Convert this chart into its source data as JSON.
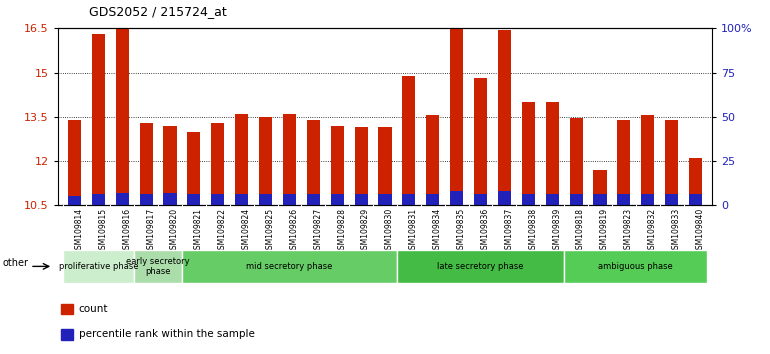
{
  "title": "GDS2052 / 215724_at",
  "samples": [
    "GSM109814",
    "GSM109815",
    "GSM109816",
    "GSM109817",
    "GSM109820",
    "GSM109821",
    "GSM109822",
    "GSM109824",
    "GSM109825",
    "GSM109826",
    "GSM109827",
    "GSM109828",
    "GSM109829",
    "GSM109830",
    "GSM109831",
    "GSM109834",
    "GSM109835",
    "GSM109836",
    "GSM109837",
    "GSM109838",
    "GSM109839",
    "GSM109818",
    "GSM109819",
    "GSM109823",
    "GSM109832",
    "GSM109833",
    "GSM109840"
  ],
  "count_values": [
    13.4,
    16.3,
    16.5,
    13.3,
    13.2,
    13.0,
    13.3,
    13.6,
    13.5,
    13.6,
    13.4,
    13.2,
    13.15,
    13.15,
    14.9,
    13.55,
    16.5,
    14.8,
    16.45,
    14.0,
    14.0,
    13.45,
    11.7,
    13.4,
    13.55,
    13.4,
    12.1
  ],
  "percentile_values": [
    0.3,
    0.4,
    0.42,
    0.38,
    0.42,
    0.38,
    0.38,
    0.38,
    0.38,
    0.38,
    0.38,
    0.38,
    0.38,
    0.38,
    0.38,
    0.38,
    0.48,
    0.4,
    0.48,
    0.4,
    0.4,
    0.4,
    0.38,
    0.4,
    0.38,
    0.38,
    0.38
  ],
  "bar_bottom": 10.5,
  "ylim_left": [
    10.5,
    16.5
  ],
  "ylim_right": [
    0,
    100
  ],
  "yticks_left": [
    10.5,
    12.0,
    13.5,
    15.0,
    16.5
  ],
  "yticks_right": [
    0,
    25,
    50,
    75,
    100
  ],
  "ytick_labels_right": [
    "0",
    "25",
    "50",
    "75",
    "100%"
  ],
  "ytick_labels_left": [
    "10.5",
    "12",
    "13.5",
    "15",
    "16.5"
  ],
  "count_color": "#CC2200",
  "percentile_color": "#2222BB",
  "bar_width": 0.55,
  "phases": [
    {
      "label": "proliferative phase",
      "start": 0,
      "end": 3,
      "color": "#CCEECC"
    },
    {
      "label": "early secretory\nphase",
      "start": 3,
      "end": 5,
      "color": "#AADDAA"
    },
    {
      "label": "mid secretory phase",
      "start": 5,
      "end": 14,
      "color": "#66CC66"
    },
    {
      "label": "late secretory phase",
      "start": 14,
      "end": 21,
      "color": "#44BB44"
    },
    {
      "label": "ambiguous phase",
      "start": 21,
      "end": 27,
      "color": "#55CC55"
    }
  ],
  "other_label": "other",
  "legend_count": "count",
  "legend_percentile": "percentile rank within the sample"
}
